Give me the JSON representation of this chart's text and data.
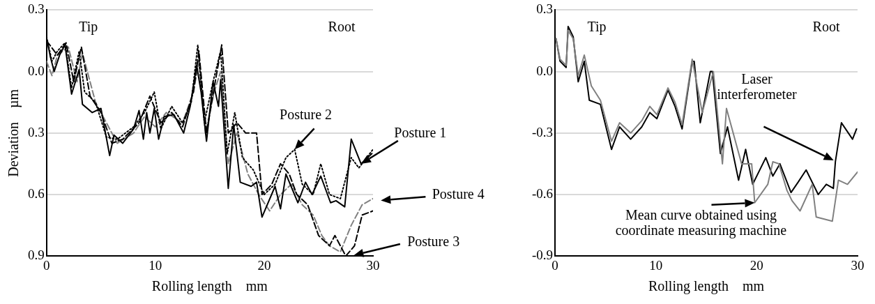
{
  "chart_data": [
    {
      "type": "line",
      "xlabel": "Rolling length    mm",
      "ylabel": "Deviation    µm",
      "xlim": [
        0,
        30
      ],
      "xticks": [
        0,
        10,
        20,
        30
      ],
      "ylim": [
        -0.9,
        0.3
      ],
      "yticks": [
        0.3,
        {
          "value": 0,
          "label": "0.0"
        },
        {
          "value": -0.3,
          "label": "0.3"
        },
        {
          "value": -0.6,
          "label": "0.6"
        },
        {
          "value": -0.9,
          "label": "0.9"
        }
      ],
      "grid": "y",
      "annotations": [
        "Tip",
        "Root",
        {
          "text": "Posture 1",
          "x": 28.9,
          "y": -0.45
        },
        {
          "text": "Posture 2",
          "x": 22.8,
          "y": -0.38
        },
        "Posture 4",
        "Posture 3"
      ],
      "series": [
        {
          "color": "#000000",
          "line_style": "solid",
          "x": [
            0,
            0.36,
            0.7,
            1.2,
            1.7,
            2.3,
            3,
            3.3,
            4.2,
            5,
            5.8,
            6.2,
            7,
            8,
            8.5,
            8.9,
            9.2,
            9.5,
            9.9,
            10.3,
            10.8,
            11.7,
            12.6,
            13.2,
            13.8,
            14.2,
            14.7,
            15.3,
            15.8,
            16,
            16.7,
            17.2,
            17.8,
            18.8,
            19.3,
            19.8,
            21,
            21.5,
            22,
            23.1,
            23.8,
            24.4,
            25.2,
            26.1,
            26.6,
            27.4,
            28,
            28.9,
            29.9
          ],
          "values": [
            0.165,
            0.07,
            0,
            0.08,
            0.13,
            -0.11,
            0.01,
            -0.16,
            -0.2,
            -0.18,
            -0.41,
            -0.31,
            -0.35,
            -0.28,
            -0.19,
            -0.33,
            -0.2,
            -0.3,
            -0.18,
            -0.33,
            -0.22,
            -0.21,
            -0.3,
            -0.17,
            0.03,
            -0.1,
            -0.34,
            -0.05,
            -0.17,
            -0.04,
            -0.57,
            -0.26,
            -0.54,
            -0.56,
            -0.54,
            -0.71,
            -0.56,
            -0.67,
            -0.5,
            -0.64,
            -0.54,
            -0.6,
            -0.51,
            -0.64,
            -0.63,
            -0.66,
            -0.33,
            -0.45,
            -0.4
          ]
        },
        {
          "color": "#000000",
          "line_style": "dotted",
          "x": [
            0,
            0.5,
            1,
            1.7,
            2.3,
            3,
            3.5,
            4.5,
            5.5,
            6.5,
            8,
            9,
            9.9,
            10.5,
            11.5,
            12.5,
            13.3,
            13.9,
            14.5,
            15.3,
            16,
            16.6,
            17.3,
            18,
            19,
            20,
            21,
            22,
            22.8,
            23.5,
            24.5,
            25.2,
            26,
            27,
            28,
            28.7,
            30
          ],
          "values": [
            0.17,
            0.05,
            0.1,
            0.14,
            -0.08,
            0.1,
            -0.1,
            -0.15,
            -0.32,
            -0.33,
            -0.27,
            -0.2,
            -0.1,
            -0.28,
            -0.17,
            -0.25,
            -0.15,
            0.13,
            -0.25,
            -0.05,
            0.1,
            -0.4,
            -0.2,
            -0.42,
            -0.48,
            -0.6,
            -0.55,
            -0.42,
            -0.38,
            -0.55,
            -0.6,
            -0.45,
            -0.6,
            -0.62,
            -0.42,
            -0.47,
            -0.38
          ]
        },
        {
          "color": "#000000",
          "line_style": "dashed",
          "x": [
            0,
            1,
            1.8,
            2.5,
            3.2,
            4,
            5,
            6,
            7,
            8.5,
            9.5,
            10.5,
            11.5,
            12.5,
            13.5,
            14,
            14.7,
            15.5,
            16.1,
            16.7,
            17.5,
            18.3,
            19.3,
            19.8,
            20.7,
            21.5,
            22.3,
            23,
            24,
            25,
            26,
            26.5,
            27.5,
            28.3,
            29,
            30
          ],
          "values": [
            0.15,
            0.08,
            0.14,
            -0.05,
            0.12,
            -0.12,
            -0.2,
            -0.35,
            -0.33,
            -0.25,
            -0.12,
            -0.25,
            -0.2,
            -0.27,
            -0.1,
            0.1,
            -0.3,
            -0.05,
            0.13,
            -0.3,
            -0.25,
            -0.3,
            -0.3,
            -0.6,
            -0.55,
            -0.45,
            -0.5,
            -0.6,
            -0.65,
            -0.8,
            -0.85,
            -0.8,
            -0.9,
            -0.85,
            -0.7,
            -0.68
          ]
        },
        {
          "color": "#808080",
          "line_style": "dashed",
          "x": [
            0,
            0.5,
            1,
            2,
            2.8,
            3.3,
            4.5,
            5.5,
            6.5,
            8,
            9,
            10,
            11,
            12.5,
            13.5,
            14,
            14.6,
            15.4,
            16,
            16.7,
            17.5,
            18.5,
            19.5,
            20.5,
            21.5,
            22.5,
            23.5,
            24.5,
            25.3,
            26,
            27,
            28,
            29,
            30
          ],
          "values": [
            0.05,
            -0.02,
            0.08,
            0.12,
            -0.05,
            0.09,
            -0.15,
            -0.25,
            -0.35,
            -0.3,
            -0.22,
            -0.27,
            -0.2,
            -0.25,
            -0.1,
            0.05,
            -0.3,
            -0.1,
            0,
            -0.45,
            -0.3,
            -0.5,
            -0.6,
            -0.68,
            -0.6,
            -0.55,
            -0.65,
            -0.7,
            -0.8,
            -0.85,
            -0.88,
            -0.75,
            -0.65,
            -0.62
          ]
        }
      ]
    },
    {
      "type": "line",
      "xlabel": "Rolling length    mm",
      "xlim": [
        0,
        30
      ],
      "xticks": [
        0,
        10,
        20,
        30
      ],
      "ylim": [
        -0.9,
        0.3
      ],
      "yticks": [
        0.3,
        {
          "value": 0,
          "label": "0.0"
        },
        -0.3,
        -0.6,
        -0.9
      ],
      "grid": "y",
      "annotations": [
        "Tip",
        "Root",
        "Laser interferometer",
        {
          "text": "Mean curve obtained using coordinate measuring machine",
          "x": 19.8,
          "y": -0.64
        }
      ],
      "series": [
        {
          "color": "#808080",
          "line_style": "solid",
          "x": [
            0.1,
            0.5,
            1.1,
            1.3,
            1.8,
            2.3,
            2.9,
            3.6,
            4.5,
            5.6,
            6.4,
            7.5,
            8.6,
            9.4,
            10.1,
            11.2,
            11.9,
            12.6,
            13.6,
            14.6,
            15.7,
            16.6,
            17,
            18.5,
            19.5,
            19.8,
            21.1,
            21.6,
            22.2,
            23,
            23.5,
            24.3,
            25.5,
            25.9,
            27.5,
            28.1,
            29,
            30
          ],
          "values": [
            0.16,
            0.06,
            0.03,
            0.2,
            0.16,
            -0.02,
            0.08,
            -0.07,
            -0.14,
            -0.34,
            -0.25,
            -0.3,
            -0.24,
            -0.17,
            -0.21,
            -0.08,
            -0.15,
            -0.26,
            0.06,
            -0.2,
            0,
            -0.45,
            -0.18,
            -0.45,
            -0.45,
            -0.64,
            -0.55,
            -0.44,
            -0.45,
            -0.58,
            -0.63,
            -0.68,
            -0.55,
            -0.71,
            -0.73,
            -0.53,
            -0.55,
            -0.49
          ]
        },
        {
          "color": "#000000",
          "line_style": "solid",
          "x": [
            0.1,
            0.5,
            1.1,
            1.3,
            1.8,
            2.3,
            2.9,
            3.4,
            4.5,
            5.6,
            6.4,
            7.5,
            8.6,
            9.4,
            10.1,
            11.2,
            11.9,
            12.6,
            13.6,
            13.8,
            14.4,
            15.4,
            15.6,
            16.4,
            17.1,
            18.2,
            18.9,
            19.6,
            20.9,
            21.6,
            22.3,
            23.4,
            24.1,
            24.9,
            26.1,
            26.9,
            27.6,
            27.8,
            28.4,
            29.5,
            29.9
          ],
          "values": [
            0.16,
            0.05,
            0.02,
            0.22,
            0.17,
            -0.05,
            0.05,
            -0.14,
            -0.16,
            -0.38,
            -0.27,
            -0.33,
            -0.27,
            -0.2,
            -0.23,
            -0.09,
            -0.17,
            -0.28,
            0.05,
            0.05,
            -0.25,
            0,
            0,
            -0.4,
            -0.27,
            -0.53,
            -0.38,
            -0.55,
            -0.42,
            -0.51,
            -0.45,
            -0.59,
            -0.54,
            -0.48,
            -0.6,
            -0.55,
            -0.57,
            -0.44,
            -0.25,
            -0.33,
            -0.28
          ]
        }
      ]
    }
  ]
}
